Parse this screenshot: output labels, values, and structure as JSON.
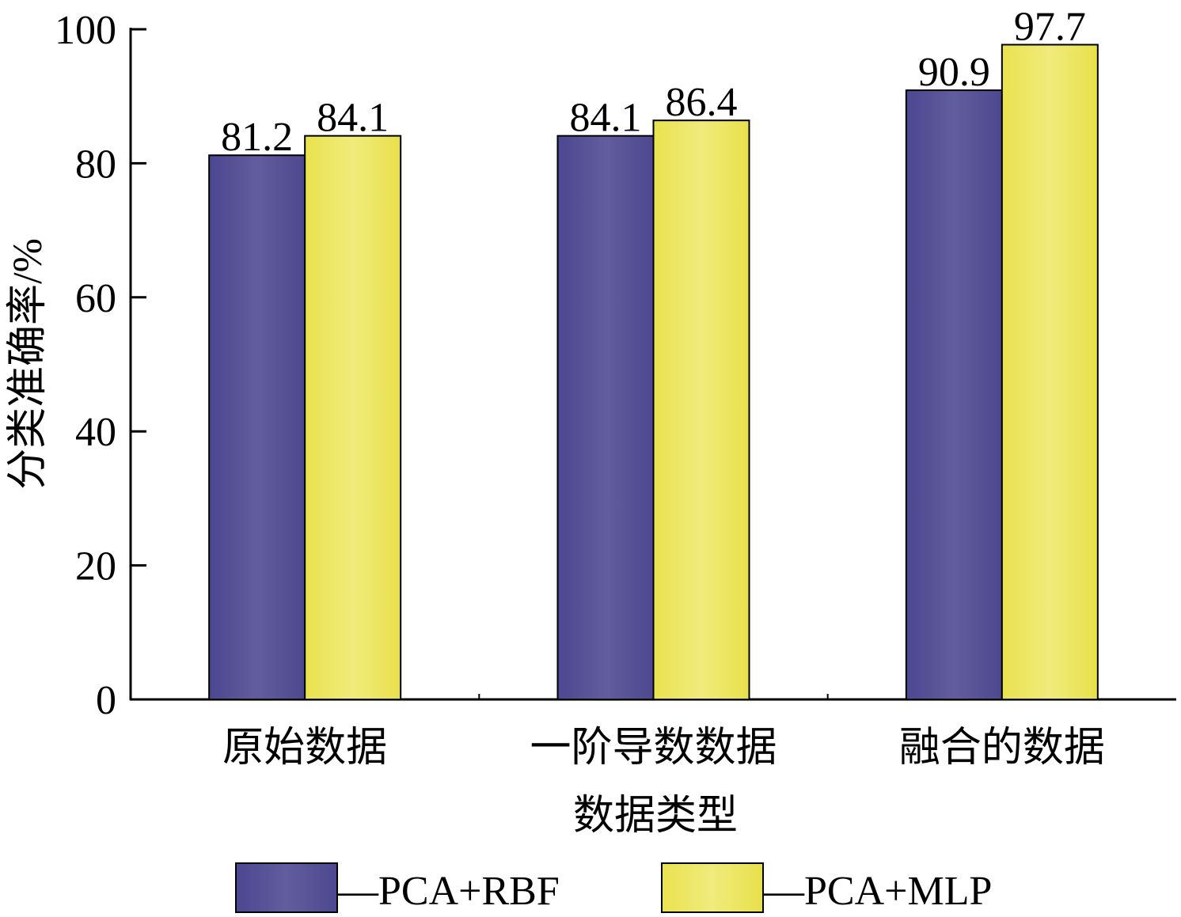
{
  "chart_data": {
    "type": "bar",
    "categories": [
      "原始数据",
      "一阶导数数据",
      "融合的数据"
    ],
    "series": [
      {
        "name": "—PCA+RBF",
        "values": [
          81.2,
          84.1,
          90.9
        ],
        "color": "#544f95"
      },
      {
        "name": "—PCA+MLP",
        "values": [
          84.1,
          86.4,
          97.7
        ],
        "color": "#ece661"
      }
    ],
    "data_labels": [
      [
        "81.2",
        "84.1",
        "90.9"
      ],
      [
        "84.1",
        "86.4",
        "97.7"
      ]
    ],
    "xlabel": "数据类型",
    "ylabel": "分类准确率/%",
    "ylim": [
      0,
      100
    ],
    "yticks": [
      "0",
      "20",
      "40",
      "60",
      "80",
      "100"
    ],
    "grid": false,
    "legend_position": "bottom"
  }
}
